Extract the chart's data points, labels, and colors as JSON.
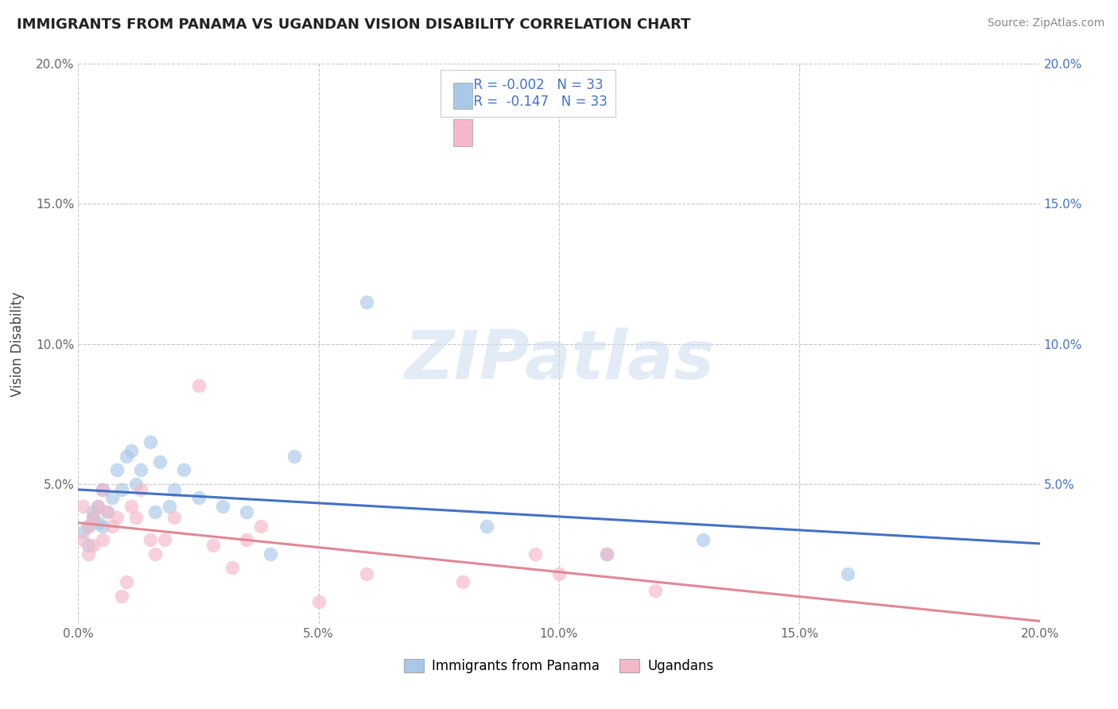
{
  "title": "IMMIGRANTS FROM PANAMA VS UGANDAN VISION DISABILITY CORRELATION CHART",
  "source": "Source: ZipAtlas.com",
  "ylabel": "Vision Disability",
  "xlim": [
    0.0,
    0.2
  ],
  "ylim": [
    0.0,
    0.2
  ],
  "xticks": [
    0.0,
    0.05,
    0.1,
    0.15,
    0.2
  ],
  "yticks": [
    0.0,
    0.05,
    0.1,
    0.15,
    0.2
  ],
  "xticklabels": [
    "0.0%",
    "5.0%",
    "10.0%",
    "15.0%",
    "20.0%"
  ],
  "yticklabels_left": [
    "",
    "5.0%",
    "10.0%",
    "15.0%",
    "20.0%"
  ],
  "yticklabels_right": [
    "",
    "5.0%",
    "10.0%",
    "15.0%",
    "20.0%"
  ],
  "legend_labels": [
    "Immigrants from Panama",
    "Ugandans"
  ],
  "r_panama": "-0.002",
  "r_uganda": "-0.147",
  "n": "33",
  "color_panama": "#a8c8e8",
  "color_uganda": "#f4b8c8",
  "color_panama_line": "#4472c4",
  "color_uganda_line": "#e08898",
  "color_text_blue": "#4472c4",
  "color_text_dark": "#333333",
  "watermark": "ZIPatlas",
  "panama_x": [
    0.001,
    0.002,
    0.002,
    0.003,
    0.003,
    0.004,
    0.004,
    0.005,
    0.005,
    0.006,
    0.007,
    0.008,
    0.009,
    0.01,
    0.011,
    0.012,
    0.013,
    0.015,
    0.016,
    0.017,
    0.019,
    0.02,
    0.022,
    0.025,
    0.03,
    0.035,
    0.04,
    0.045,
    0.06,
    0.085,
    0.11,
    0.13,
    0.16
  ],
  "panama_y": [
    0.033,
    0.035,
    0.028,
    0.038,
    0.04,
    0.036,
    0.042,
    0.035,
    0.048,
    0.04,
    0.045,
    0.055,
    0.048,
    0.06,
    0.062,
    0.05,
    0.055,
    0.065,
    0.04,
    0.058,
    0.042,
    0.048,
    0.055,
    0.045,
    0.042,
    0.04,
    0.025,
    0.06,
    0.115,
    0.035,
    0.025,
    0.03,
    0.018
  ],
  "uganda_x": [
    0.001,
    0.001,
    0.002,
    0.002,
    0.003,
    0.003,
    0.004,
    0.005,
    0.005,
    0.006,
    0.007,
    0.008,
    0.009,
    0.01,
    0.011,
    0.012,
    0.013,
    0.015,
    0.016,
    0.018,
    0.02,
    0.025,
    0.028,
    0.032,
    0.035,
    0.038,
    0.05,
    0.06,
    0.08,
    0.095,
    0.1,
    0.11,
    0.12
  ],
  "uganda_y": [
    0.03,
    0.042,
    0.025,
    0.035,
    0.038,
    0.028,
    0.042,
    0.03,
    0.048,
    0.04,
    0.035,
    0.038,
    0.01,
    0.015,
    0.042,
    0.038,
    0.048,
    0.03,
    0.025,
    0.03,
    0.038,
    0.085,
    0.028,
    0.02,
    0.03,
    0.035,
    0.008,
    0.018,
    0.015,
    0.025,
    0.018,
    0.025,
    0.012
  ]
}
